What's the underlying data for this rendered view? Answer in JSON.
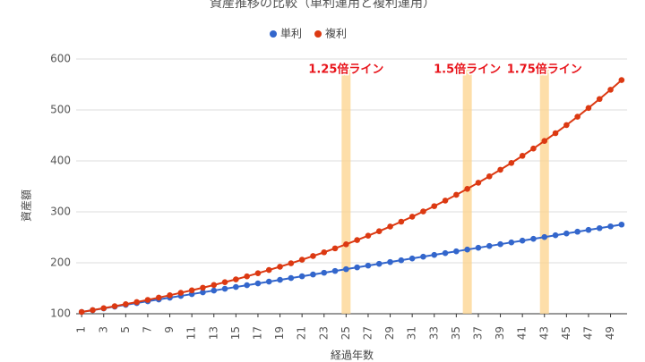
{
  "chart_data": {
    "type": "line",
    "title": "資産推移の比較（単利運用と複利運用）",
    "x_label": "経過年数",
    "y_label": "資産額",
    "x": [
      1,
      2,
      3,
      4,
      5,
      6,
      7,
      8,
      9,
      10,
      11,
      12,
      13,
      14,
      15,
      16,
      17,
      18,
      19,
      20,
      21,
      22,
      23,
      24,
      25,
      26,
      27,
      28,
      29,
      30,
      31,
      32,
      33,
      34,
      35,
      36,
      37,
      38,
      39,
      40,
      41,
      42,
      43,
      44,
      45,
      46,
      47,
      48,
      49,
      50
    ],
    "xlim": [
      0.5,
      50.5
    ],
    "xticks": [
      1,
      3,
      5,
      7,
      9,
      11,
      13,
      15,
      17,
      19,
      21,
      23,
      25,
      27,
      29,
      31,
      33,
      35,
      37,
      39,
      41,
      43,
      45,
      47,
      49
    ],
    "ylim": [
      100,
      600
    ],
    "yticks": [
      100,
      200,
      300,
      400,
      500,
      600
    ],
    "grid": true,
    "series": [
      {
        "name": "単利",
        "color": "#3366cc",
        "values": [
          103.5,
          107,
          110.5,
          114,
          117.5,
          121,
          124.5,
          128,
          131.5,
          135,
          138.5,
          142,
          145.5,
          149,
          152.5,
          156,
          159.5,
          163,
          166.5,
          170,
          173.5,
          177,
          180.5,
          184,
          187.5,
          191,
          194.5,
          198,
          201.5,
          205,
          208.5,
          212,
          215.5,
          219,
          222.5,
          226,
          229.5,
          233,
          236.5,
          240,
          243.5,
          247,
          250.5,
          254,
          257.5,
          261,
          264.5,
          268,
          271.5,
          275
        ]
      },
      {
        "name": "複利",
        "color": "#dc3912",
        "values": [
          103.5,
          107.1,
          110.9,
          114.8,
          118.8,
          122.9,
          127.2,
          131.7,
          136.3,
          141.1,
          146.0,
          151.1,
          156.4,
          161.9,
          167.5,
          173.4,
          179.5,
          185.8,
          192.3,
          199.0,
          206.0,
          213.2,
          220.6,
          228.3,
          236.3,
          244.6,
          253.2,
          262.0,
          271.2,
          280.7,
          290.5,
          300.7,
          311.2,
          322.1,
          333.4,
          345.1,
          357.2,
          369.7,
          382.6,
          396.0,
          409.9,
          424.2,
          439.1,
          454.4,
          470.3,
          486.8,
          503.8,
          521.5,
          539.7,
          558.6
        ]
      }
    ],
    "annotations": [
      {
        "label": "1.25倍ライン",
        "x": 25
      },
      {
        "label": "1.5倍ライン",
        "x": 36
      },
      {
        "label": "1.75倍ライン",
        "x": 43
      }
    ]
  }
}
